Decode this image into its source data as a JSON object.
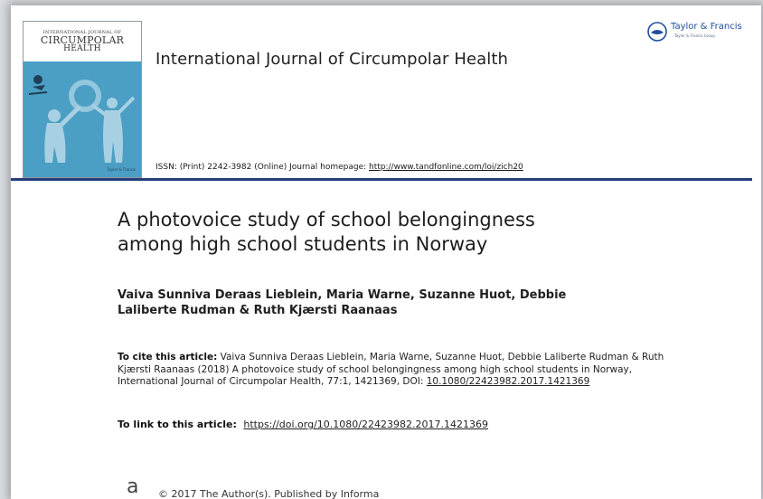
{
  "cover": {
    "supertitle": "INTERNATIONAL JOURNAL OF",
    "title_line1": "CIRCUMPOLAR",
    "title_line2": "HEALTH",
    "publisher_mark": "Taylor & Francis"
  },
  "header": {
    "journal_title": "International Journal of Circumpolar Health",
    "publisher_name": "Taylor & Francis",
    "publisher_group": "Taylor & Francis Group",
    "issn_text": "ISSN: (Print) 2242-3982 (Online) Journal homepage:",
    "homepage_url": "http://www.tandfonline.com/loi/zich20"
  },
  "article": {
    "title_line1": "A photovoice study of school belongingness",
    "title_line2": "among high school students in Norway",
    "authors_line1": "Vaiva Sunniva Deraas Lieblein, Maria Warne, Suzanne Huot, Debbie",
    "authors_line2": "Laliberte Rudman & Ruth Kjærsti Raanaas",
    "cite_label": "To cite this article:",
    "cite_text": " Vaiva Sunniva Deraas Lieblein, Maria Warne, Suzanne Huot, Debbie Laliberte Rudman & Ruth Kjærsti Raanaas (2018) A photovoice study of school belongingness among high school students in Norway, International Journal of Circumpolar Health, 77:1, 1421369, DOI: ",
    "cite_doi": "10.1080/22423982.2017.1421369",
    "link_label": "To link to this article:",
    "link_url": "https://doi.org/10.1080/22423982.2017.1421369"
  },
  "footer": {
    "oa_glyph": "a",
    "copyright": "© 2017 The Author(s). Published by Informa"
  },
  "colors": {
    "rule": "#253e7a",
    "cover_art": "#4b9ec4",
    "publisher_blue": "#1f4e9b"
  }
}
